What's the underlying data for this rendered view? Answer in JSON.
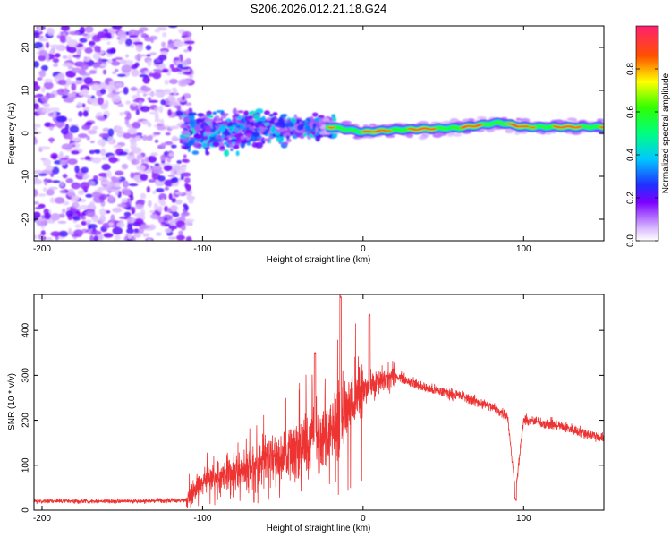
{
  "chart_data": [
    {
      "type": "heatmap",
      "title": "S206.2026.012.21.18.G24",
      "xlabel": "Height of straight line (km)",
      "ylabel": "Frequency (Hz)",
      "xlim": [
        -205,
        150
      ],
      "ylim": [
        -25,
        25
      ],
      "xticks": [
        -200,
        -100,
        0,
        100
      ],
      "yticks": [
        -20,
        -10,
        0,
        10,
        20
      ],
      "colorbar": {
        "label": "Normalized spectral amplitude",
        "range": [
          0,
          1
        ],
        "ticks": [
          0.0,
          0.2,
          0.4,
          0.6,
          0.8
        ]
      },
      "ridge": {
        "description": "dominant frequency ridge",
        "x_start": -110,
        "x_end": 150,
        "frequency_hz": [
          {
            "x": -110,
            "f": 0.0
          },
          {
            "x": -60,
            "f": 1.0
          },
          {
            "x": -20,
            "f": 1.5
          },
          {
            "x": 0,
            "f": 0.3
          },
          {
            "x": 20,
            "f": 0.8
          },
          {
            "x": 60,
            "f": 1.3
          },
          {
            "x": 85,
            "f": 2.5
          },
          {
            "x": 100,
            "f": 1.5
          },
          {
            "x": 150,
            "f": 1.5
          }
        ]
      },
      "noise_region": {
        "x_start": -205,
        "x_end": -115,
        "amplitude": "low (0.05-0.25)"
      }
    },
    {
      "type": "line",
      "title": "",
      "xlabel": "Height of straight line (km)",
      "ylabel": "SNR (10 * v/v)",
      "xlim": [
        -205,
        150
      ],
      "ylim": [
        0,
        480
      ],
      "xticks": [
        -200,
        -100,
        0,
        100
      ],
      "yticks": [
        0,
        100,
        200,
        300,
        400
      ],
      "color": "#ee3333",
      "series": [
        {
          "name": "SNR",
          "points": [
            {
              "x": -205,
              "y": 20
            },
            {
              "x": -150,
              "y": 20
            },
            {
              "x": -110,
              "y": 22
            },
            {
              "x": -100,
              "y": 70
            },
            {
              "x": -80,
              "y": 80
            },
            {
              "x": -60,
              "y": 110
            },
            {
              "x": -40,
              "y": 140
            },
            {
              "x": -20,
              "y": 180
            },
            {
              "x": -10,
              "y": 230
            },
            {
              "x": 0,
              "y": 270
            },
            {
              "x": 20,
              "y": 300
            },
            {
              "x": 40,
              "y": 270
            },
            {
              "x": 60,
              "y": 255
            },
            {
              "x": 80,
              "y": 230
            },
            {
              "x": 90,
              "y": 210
            },
            {
              "x": 95,
              "y": 40
            },
            {
              "x": 100,
              "y": 200
            },
            {
              "x": 120,
              "y": 190
            },
            {
              "x": 150,
              "y": 160
            }
          ],
          "peaks": [
            {
              "x": -14,
              "y": 475
            },
            {
              "x": 4,
              "y": 435
            },
            {
              "x": -30,
              "y": 350
            },
            {
              "x": 95,
              "y": 25
            }
          ]
        }
      ]
    }
  ]
}
